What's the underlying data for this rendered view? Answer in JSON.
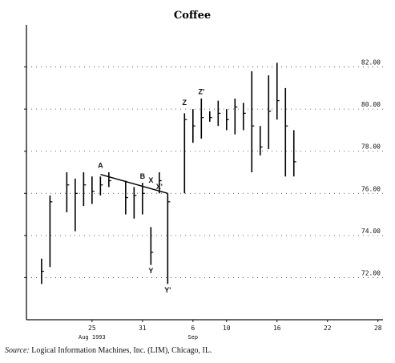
{
  "chart_data": {
    "type": "bar",
    "subtype": "high-low-close",
    "title": "Coffee",
    "xlabel": "",
    "ylabel": "",
    "ylim": [
      70,
      84
    ],
    "y_ticks": [
      "72.00",
      "74.00",
      "76.00",
      "78.00",
      "80.00",
      "82.00"
    ],
    "grid": "horizontal dotted",
    "x_ticks": [
      {
        "label": "25",
        "day": 25,
        "sublabel": "Aug 1993"
      },
      {
        "label": "31",
        "day": 31,
        "sublabel": ""
      },
      {
        "label": "6",
        "day": 37,
        "sublabel": "Sep"
      },
      {
        "label": "10",
        "day": 41,
        "sublabel": ""
      },
      {
        "label": "16",
        "day": 47,
        "sublabel": ""
      },
      {
        "label": "22",
        "day": 53,
        "sublabel": ""
      },
      {
        "label": "28",
        "day": 59,
        "sublabel": ""
      }
    ],
    "bars": [
      {
        "day": 19,
        "high": 72.9,
        "low": 71.7,
        "close": 72.3
      },
      {
        "day": 20,
        "high": 75.9,
        "low": 72.5,
        "close": 75.6
      },
      {
        "day": 22,
        "high": 77.0,
        "low": 75.1,
        "close": 76.4
      },
      {
        "day": 23,
        "high": 76.7,
        "low": 74.2,
        "close": 76.0
      },
      {
        "day": 24,
        "high": 77.0,
        "low": 75.4,
        "close": 76.4
      },
      {
        "day": 25,
        "high": 76.8,
        "low": 75.5,
        "close": 76.1
      },
      {
        "day": 26,
        "high": 76.8,
        "low": 75.9,
        "close": 76.4
      },
      {
        "day": 27,
        "high": 77.0,
        "low": 76.3,
        "close": 76.6
      },
      {
        "day": 29,
        "high": 76.6,
        "low": 75.0,
        "close": 75.8
      },
      {
        "day": 30,
        "high": 76.3,
        "low": 74.8,
        "close": 75.9
      },
      {
        "day": 31,
        "high": 76.5,
        "low": 75.0,
        "close": 76.0
      },
      {
        "day": 32,
        "high": 74.4,
        "low": 72.6,
        "close": 73.2
      },
      {
        "day": 33,
        "high": 77.0,
        "low": 76.0,
        "close": 76.6
      },
      {
        "day": 34,
        "high": 76.0,
        "low": 71.7,
        "close": 75.6
      },
      {
        "day": 36,
        "high": 79.8,
        "low": 76.0,
        "close": 79.5
      },
      {
        "day": 37,
        "high": 80.0,
        "low": 78.4,
        "close": 79.2
      },
      {
        "day": 38,
        "high": 80.5,
        "low": 78.6,
        "close": 79.6
      },
      {
        "day": 39,
        "high": 79.9,
        "low": 79.4,
        "close": 79.6
      },
      {
        "day": 40,
        "high": 80.4,
        "low": 79.2,
        "close": 79.8
      },
      {
        "day": 41,
        "high": 80.0,
        "low": 79.0,
        "close": 79.5
      },
      {
        "day": 42,
        "high": 80.5,
        "low": 78.8,
        "close": 80.1
      },
      {
        "day": 43,
        "high": 80.3,
        "low": 79.0,
        "close": 79.8
      },
      {
        "day": 44,
        "high": 81.8,
        "low": 77.0,
        "close": 79.2
      },
      {
        "day": 45,
        "high": 79.2,
        "low": 77.8,
        "close": 78.2
      },
      {
        "day": 46,
        "high": 81.6,
        "low": 78.1,
        "close": 79.9
      },
      {
        "day": 47,
        "high": 82.2,
        "low": 79.5,
        "close": 80.4
      },
      {
        "day": 48,
        "high": 81.0,
        "low": 76.8,
        "close": 79.2
      },
      {
        "day": 49,
        "high": 79.0,
        "low": 76.8,
        "close": 77.5
      }
    ],
    "trendline": {
      "from": {
        "day": 26,
        "value": 76.9
      },
      "to": {
        "day": 34,
        "value": 76.0
      }
    },
    "annotations": [
      {
        "text": "A",
        "day": 26,
        "value": 77.2
      },
      {
        "text": "B",
        "day": 31,
        "value": 76.7
      },
      {
        "text": "X",
        "day": 32,
        "value": 76.5
      },
      {
        "text": "X'",
        "day": 33,
        "value": 76.2
      },
      {
        "text": "Y",
        "day": 32,
        "value": 72.2
      },
      {
        "text": "Y'",
        "day": 34,
        "value": 71.3
      },
      {
        "text": "Z",
        "day": 36,
        "value": 80.2
      },
      {
        "text": "Z'",
        "day": 38,
        "value": 80.7
      }
    ]
  },
  "source": {
    "label": "Source:",
    "text": "Logical Information Machines, Inc. (LIM), Chicago, IL."
  }
}
